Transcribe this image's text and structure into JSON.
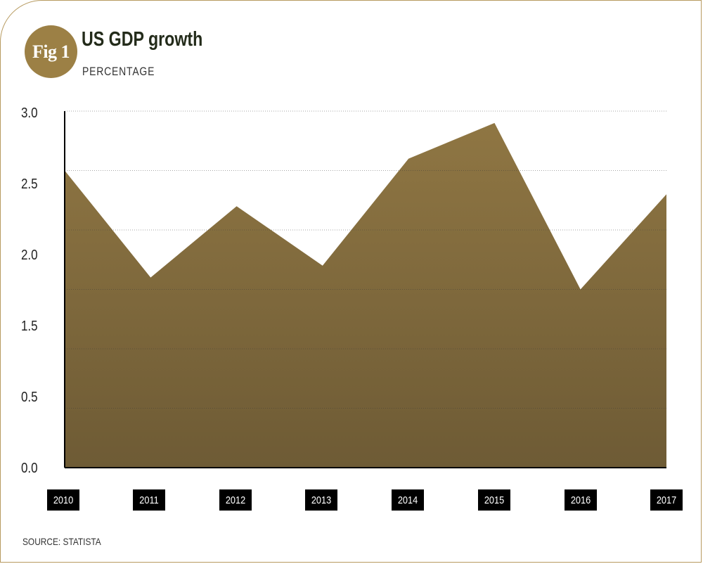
{
  "header": {
    "badge": "Fig 1",
    "title": "US GDP growth",
    "subtitle": "PERCENTAGE"
  },
  "footer": {
    "source": "SOURCE: STATISTA"
  },
  "colors": {
    "accent": "#9c8045",
    "area_top": "#8f7643",
    "area_bottom": "#6e5b35",
    "label_bg": "#000000",
    "frame_border": "#b79a5f"
  },
  "chart_data": {
    "type": "area",
    "title": "US GDP growth",
    "subtitle": "PERCENTAGE",
    "x": [
      "2010",
      "2011",
      "2012",
      "2013",
      "2014",
      "2015",
      "2016",
      "2017"
    ],
    "values": [
      2.5,
      1.6,
      2.2,
      1.7,
      2.6,
      2.9,
      1.5,
      2.3
    ],
    "y_tick_labels": [
      "0.0",
      "0.5",
      "1.5",
      "2.0",
      "2.5",
      "3.0"
    ],
    "ylim": [
      0.0,
      3.0
    ],
    "grid": true,
    "source": "SOURCE: STATISTA"
  }
}
